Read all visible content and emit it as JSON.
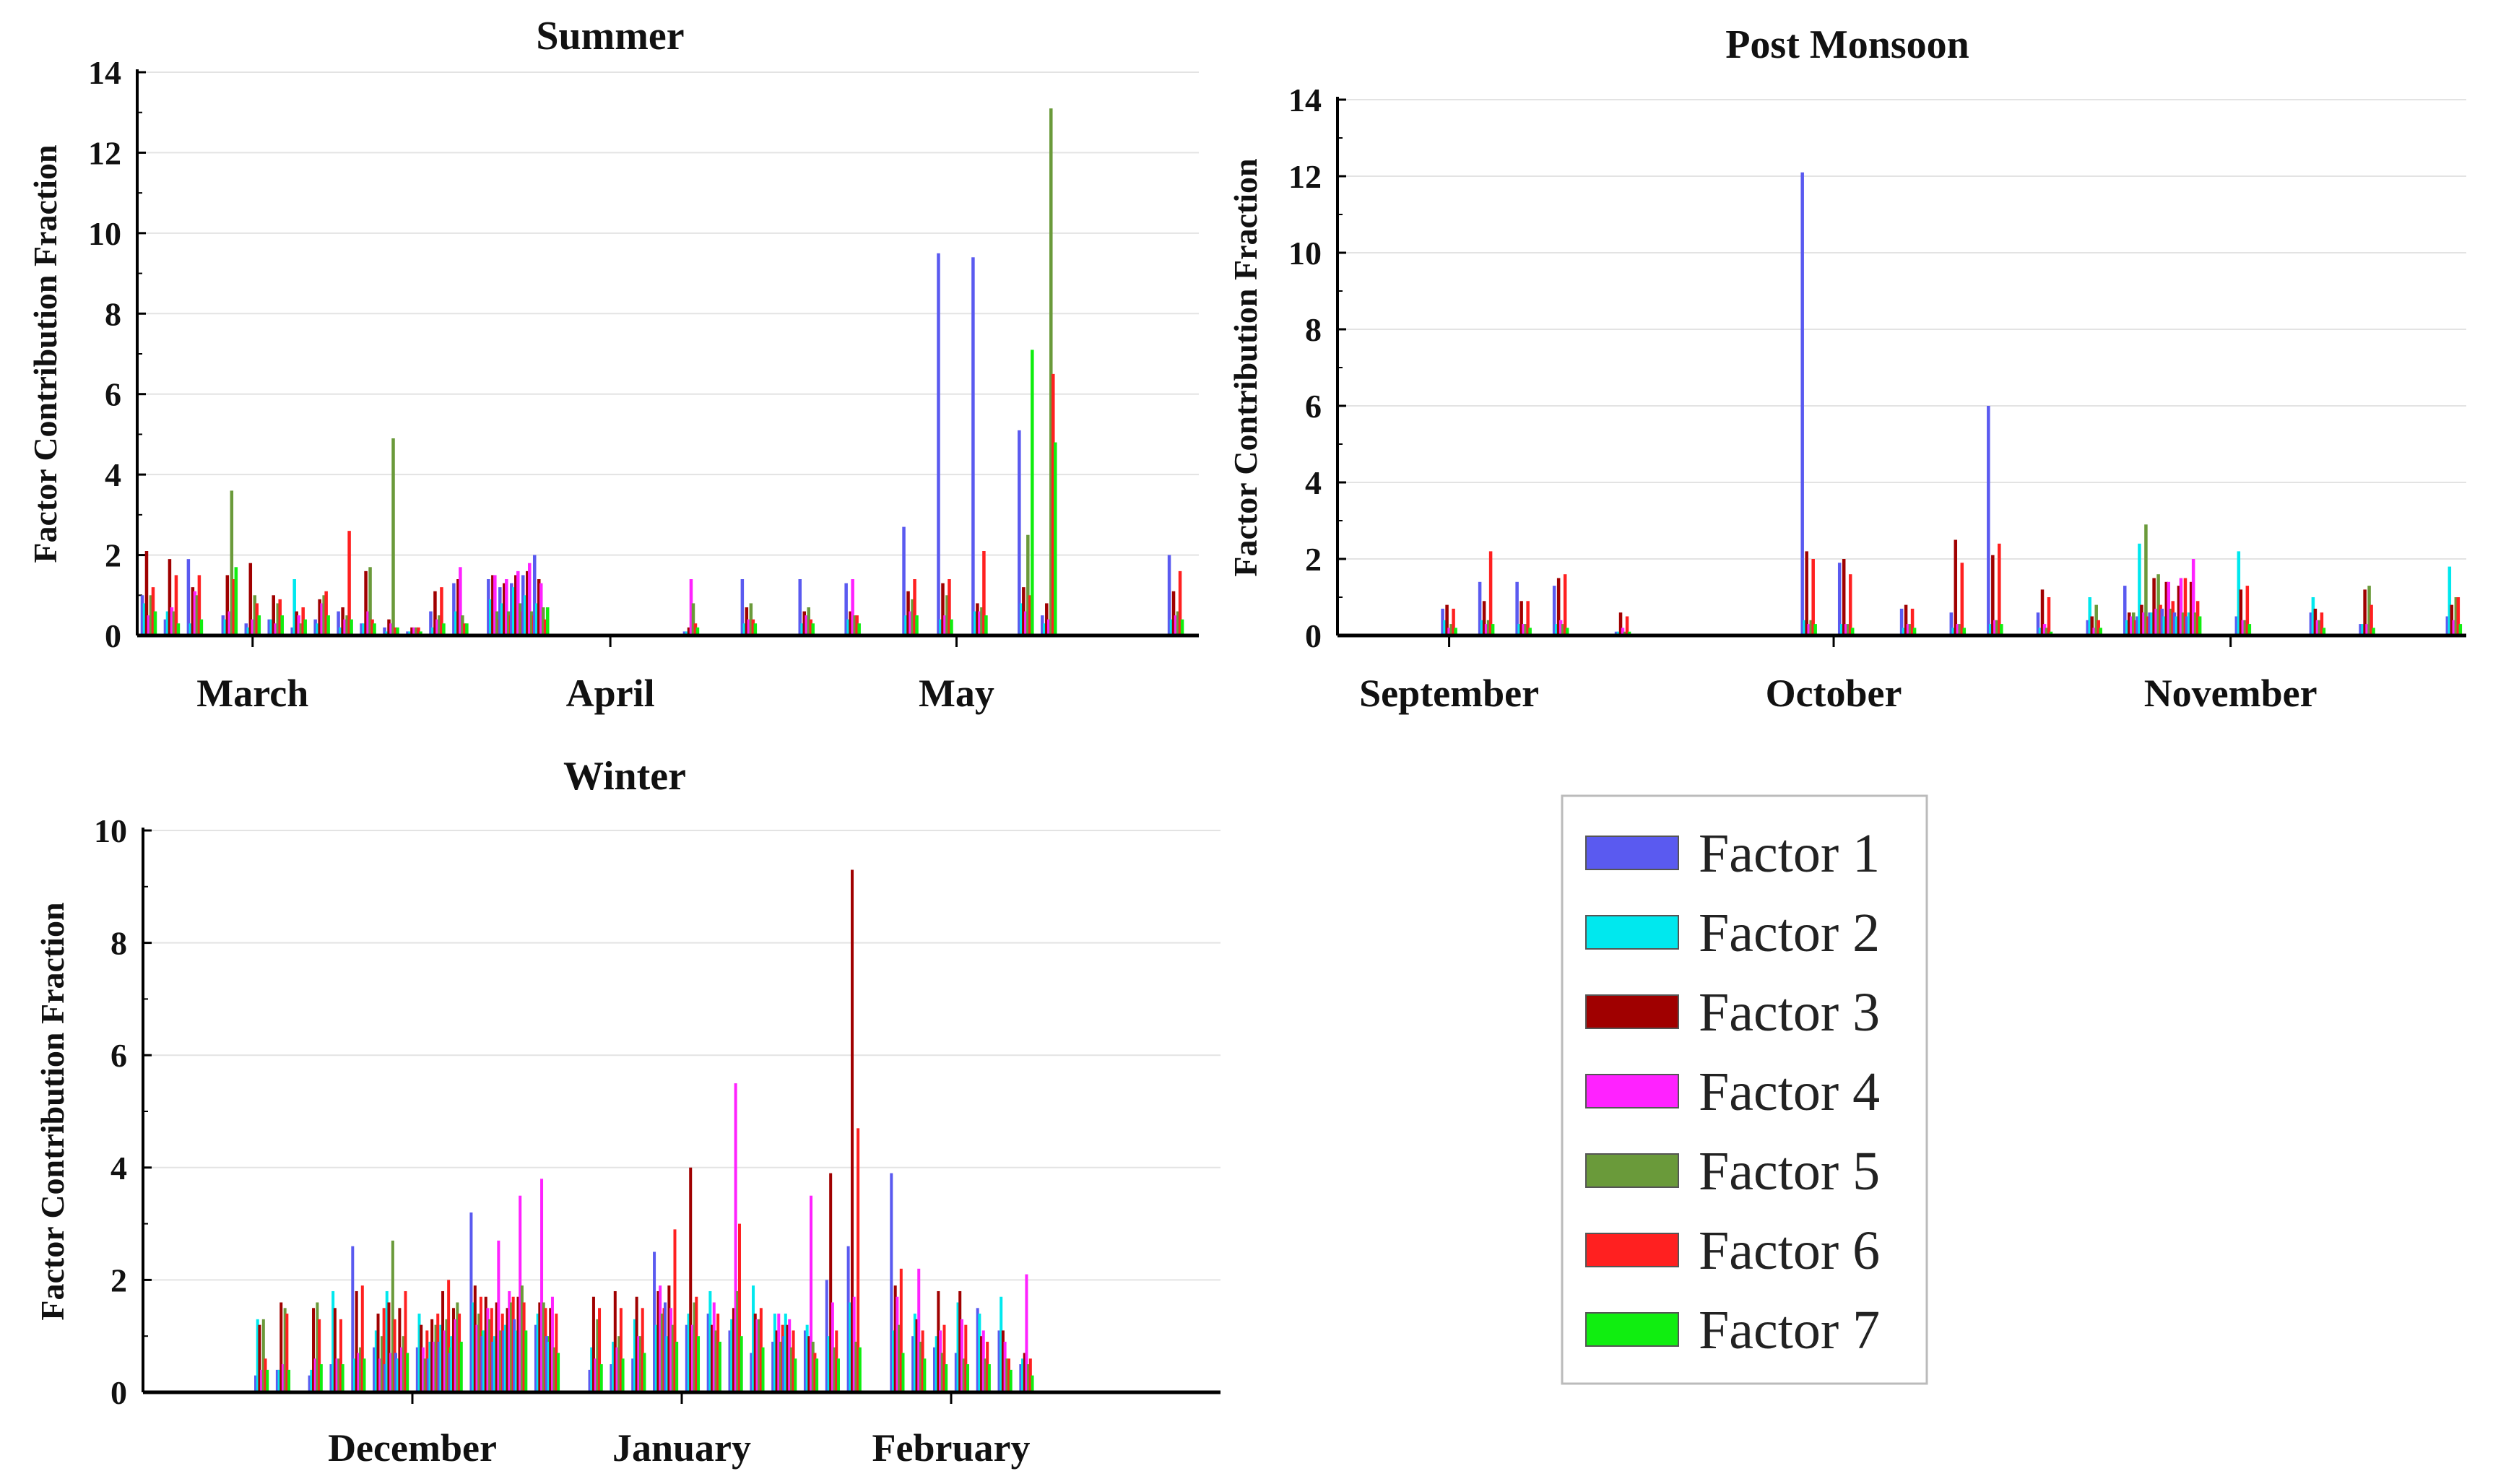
{
  "factors": [
    {
      "name": "Factor 1",
      "color": "#5a5af0"
    },
    {
      "name": "Factor 2",
      "color": "#00e8ee"
    },
    {
      "name": "Factor 3",
      "color": "#a00000"
    },
    {
      "name": "Factor 4",
      "color": "#ff22ff"
    },
    {
      "name": "Factor 5",
      "color": "#6a9a3a"
    },
    {
      "name": "Factor 6",
      "color": "#ff2020"
    },
    {
      "name": "Factor 7",
      "color": "#10ee10"
    }
  ],
  "chart_data": [
    {
      "type": "bar",
      "title": "Summer",
      "ylabel": "Factor Contribution Fraction",
      "xlabel": "",
      "ylim": [
        0,
        14
      ],
      "yticks": [
        0,
        2,
        4,
        6,
        8,
        10,
        12,
        14
      ],
      "xlim": [
        0,
        92
      ],
      "months": [
        {
          "label": "March",
          "x": 10
        },
        {
          "label": "April",
          "x": 41
        },
        {
          "label": "May",
          "x": 71
        }
      ],
      "samples": [
        {
          "day": 1,
          "values": [
            1.0,
            0.8,
            2.1,
            0.5,
            1.0,
            1.2,
            0.6
          ]
        },
        {
          "day": 3,
          "values": [
            0.4,
            0.6,
            1.9,
            0.7,
            0.6,
            1.5,
            0.3
          ]
        },
        {
          "day": 5,
          "values": [
            1.9,
            0.3,
            1.2,
            1.1,
            1.0,
            1.5,
            0.4
          ]
        },
        {
          "day": 8,
          "values": [
            0.5,
            0.4,
            1.5,
            0.6,
            3.6,
            1.4,
            1.7
          ]
        },
        {
          "day": 10,
          "values": [
            0.3,
            0.2,
            1.8,
            0.4,
            1.0,
            0.8,
            0.5
          ]
        },
        {
          "day": 12,
          "values": [
            0.4,
            0.4,
            1.0,
            0.3,
            0.8,
            0.9,
            0.5
          ]
        },
        {
          "day": 14,
          "values": [
            0.2,
            1.4,
            0.6,
            0.5,
            0.3,
            0.7,
            0.4
          ]
        },
        {
          "day": 16,
          "values": [
            0.4,
            0.3,
            0.9,
            0.8,
            1.0,
            1.1,
            0.5
          ]
        },
        {
          "day": 18,
          "values": [
            0.6,
            0.2,
            0.7,
            0.4,
            0.5,
            2.6,
            0.4
          ]
        },
        {
          "day": 20,
          "values": [
            0.3,
            0.3,
            1.6,
            0.6,
            1.7,
            0.4,
            0.3
          ]
        },
        {
          "day": 22,
          "values": [
            0.2,
            0.1,
            0.4,
            0.3,
            4.9,
            0.2,
            0.2
          ]
        },
        {
          "day": 24,
          "values": [
            0.1,
            0.1,
            0.2,
            0.2,
            0.2,
            0.2,
            0.1
          ]
        },
        {
          "day": 26,
          "values": [
            0.6,
            0.2,
            1.1,
            0.4,
            0.5,
            1.2,
            0.3
          ]
        },
        {
          "day": 28,
          "values": [
            1.3,
            0.6,
            1.4,
            1.7,
            0.5,
            0.3,
            0.3
          ]
        },
        {
          "day": 31,
          "values": [
            1.4,
            0.9,
            1.5,
            1.5,
            0.6,
            0.4,
            0.6
          ]
        },
        {
          "day": 32,
          "values": [
            1.2,
            0.8,
            1.3,
            1.4,
            0.6,
            0.5,
            0.6
          ]
        },
        {
          "day": 33,
          "values": [
            1.3,
            1.2,
            1.5,
            1.6,
            0.8,
            0.6,
            0.7
          ]
        },
        {
          "day": 34,
          "values": [
            1.5,
            1.0,
            1.6,
            1.8,
            0.6,
            0.5,
            0.5
          ]
        },
        {
          "day": 35,
          "values": [
            2.0,
            0.8,
            1.4,
            1.3,
            0.7,
            0.4,
            0.7
          ]
        },
        {
          "day": 48,
          "values": [
            0.1,
            0.1,
            0.2,
            1.4,
            0.8,
            0.3,
            0.2
          ]
        },
        {
          "day": 53,
          "values": [
            1.4,
            0.3,
            0.7,
            0.4,
            0.8,
            0.4,
            0.3
          ]
        },
        {
          "day": 58,
          "values": [
            1.4,
            0.3,
            0.6,
            0.5,
            0.7,
            0.4,
            0.3
          ]
        },
        {
          "day": 62,
          "values": [
            1.3,
            0.4,
            0.6,
            1.4,
            0.5,
            0.5,
            0.3
          ]
        },
        {
          "day": 67,
          "values": [
            2.7,
            0.5,
            1.1,
            0.6,
            0.9,
            1.4,
            0.5
          ]
        },
        {
          "day": 70,
          "values": [
            9.5,
            0.4,
            1.3,
            0.5,
            1.0,
            1.4,
            0.4
          ]
        },
        {
          "day": 73,
          "values": [
            9.4,
            0.6,
            0.8,
            0.6,
            0.7,
            2.1,
            0.5
          ]
        },
        {
          "day": 77,
          "values": [
            5.1,
            0.8,
            1.2,
            0.6,
            2.5,
            1.0,
            7.1
          ]
        },
        {
          "day": 79,
          "values": [
            0.5,
            0.3,
            0.8,
            0.4,
            13.1,
            6.5,
            4.8
          ]
        },
        {
          "day": 90,
          "values": [
            2.0,
            0.4,
            1.1,
            0.5,
            0.6,
            1.6,
            0.4
          ]
        }
      ]
    },
    {
      "type": "bar",
      "title": "Post Monsoon",
      "ylabel": "Factor Contribution Fraction",
      "xlabel": "",
      "ylim": [
        0,
        14
      ],
      "yticks": [
        0,
        2,
        4,
        6,
        8,
        10,
        12,
        14
      ],
      "xlim": [
        0,
        91
      ],
      "months": [
        {
          "label": "September",
          "x": 9
        },
        {
          "label": "October",
          "x": 40
        },
        {
          "label": "November",
          "x": 72
        }
      ],
      "samples": [
        {
          "day": 9,
          "values": [
            0.7,
            0.4,
            0.8,
            0.2,
            0.3,
            0.7,
            0.2
          ]
        },
        {
          "day": 12,
          "values": [
            1.4,
            0.4,
            0.9,
            0.3,
            0.4,
            2.2,
            0.3
          ]
        },
        {
          "day": 15,
          "values": [
            1.4,
            0.3,
            0.9,
            0.3,
            0.3,
            0.9,
            0.2
          ]
        },
        {
          "day": 18,
          "values": [
            1.3,
            0.3,
            1.5,
            0.4,
            0.3,
            1.6,
            0.2
          ]
        },
        {
          "day": 23,
          "values": [
            0.1,
            0.1,
            0.6,
            0.2,
            0.1,
            0.5,
            0.1
          ]
        },
        {
          "day": 38,
          "values": [
            12.1,
            0.4,
            2.2,
            0.3,
            0.4,
            2.0,
            0.3
          ]
        },
        {
          "day": 41,
          "values": [
            1.9,
            0.3,
            2.0,
            0.3,
            0.3,
            1.6,
            0.2
          ]
        },
        {
          "day": 46,
          "values": [
            0.7,
            0.2,
            0.8,
            0.3,
            0.3,
            0.7,
            0.2
          ]
        },
        {
          "day": 50,
          "values": [
            0.6,
            0.2,
            2.5,
            0.3,
            0.3,
            1.9,
            0.2
          ]
        },
        {
          "day": 53,
          "values": [
            6.0,
            0.3,
            2.1,
            0.4,
            0.4,
            2.4,
            0.3
          ]
        },
        {
          "day": 57,
          "values": [
            0.6,
            0.2,
            1.2,
            0.3,
            0.2,
            1.0,
            0.1
          ]
        },
        {
          "day": 61,
          "values": [
            0.4,
            1.0,
            0.5,
            0.2,
            0.8,
            0.4,
            0.2
          ]
        },
        {
          "day": 64,
          "values": [
            1.3,
            0.4,
            0.6,
            0.5,
            0.6,
            0.4,
            0.3
          ]
        },
        {
          "day": 65,
          "values": [
            0.5,
            2.4,
            0.8,
            0.6,
            2.9,
            0.5,
            0.5
          ]
        },
        {
          "day": 66,
          "values": [
            0.6,
            0.6,
            1.5,
            0.7,
            1.6,
            0.8,
            0.5
          ]
        },
        {
          "day": 67,
          "values": [
            0.7,
            0.5,
            1.4,
            1.4,
            0.7,
            0.9,
            0.4
          ]
        },
        {
          "day": 68,
          "values": [
            0.6,
            0.5,
            1.3,
            1.5,
            0.6,
            1.5,
            0.4
          ]
        },
        {
          "day": 69,
          "values": [
            0.5,
            0.6,
            1.4,
            2.0,
            0.6,
            0.9,
            0.5
          ]
        },
        {
          "day": 73,
          "values": [
            0.5,
            2.2,
            1.2,
            0.4,
            0.4,
            1.3,
            0.3
          ]
        },
        {
          "day": 79,
          "values": [
            0.6,
            1.0,
            0.7,
            0.4,
            0.4,
            0.6,
            0.2
          ]
        },
        {
          "day": 83,
          "values": [
            0.3,
            0.3,
            1.2,
            0.3,
            1.3,
            0.8,
            0.2
          ]
        },
        {
          "day": 90,
          "values": [
            0.5,
            1.8,
            0.8,
            0.4,
            1.0,
            1.0,
            0.3
          ]
        }
      ]
    },
    {
      "type": "bar",
      "title": "Winter",
      "ylabel": "Factor Contribution Fraction",
      "xlabel": "",
      "ylim": [
        0,
        10
      ],
      "yticks": [
        0,
        2,
        4,
        6,
        8,
        10
      ],
      "xlim": [
        0,
        100
      ],
      "months": [
        {
          "label": "December",
          "x": 25
        },
        {
          "label": "January",
          "x": 50
        },
        {
          "label": "February",
          "x": 75
        }
      ],
      "samples": [
        {
          "day": 11,
          "values": [
            0.3,
            1.3,
            1.2,
            0.4,
            1.3,
            0.6,
            0.4
          ]
        },
        {
          "day": 13,
          "values": [
            0.4,
            0.4,
            1.6,
            0.5,
            1.5,
            1.4,
            0.4
          ]
        },
        {
          "day": 16,
          "values": [
            0.3,
            0.4,
            1.5,
            0.6,
            1.6,
            1.3,
            0.5
          ]
        },
        {
          "day": 18,
          "values": [
            0.5,
            1.8,
            1.5,
            0.6,
            0.6,
            1.3,
            0.5
          ]
        },
        {
          "day": 20,
          "values": [
            2.6,
            0.6,
            1.8,
            0.7,
            0.8,
            1.9,
            0.6
          ]
        },
        {
          "day": 22,
          "values": [
            0.8,
            1.1,
            1.4,
            0.6,
            1.0,
            1.5,
            0.5
          ]
        },
        {
          "day": 23,
          "values": [
            0.5,
            1.8,
            1.6,
            0.7,
            2.7,
            1.3,
            0.6
          ]
        },
        {
          "day": 24,
          "values": [
            0.7,
            0.6,
            1.5,
            0.8,
            1.0,
            1.8,
            0.7
          ]
        },
        {
          "day": 26,
          "values": [
            0.8,
            1.4,
            1.2,
            0.8,
            0.6,
            1.1,
            0.6
          ]
        },
        {
          "day": 27,
          "values": [
            0.6,
            0.9,
            1.3,
            0.9,
            1.2,
            1.4,
            0.7
          ]
        },
        {
          "day": 28,
          "values": [
            0.9,
            1.2,
            1.8,
            1.1,
            1.3,
            2.0,
            0.8
          ]
        },
        {
          "day": 29,
          "values": [
            0.7,
            1.0,
            1.5,
            1.3,
            1.6,
            1.4,
            0.9
          ]
        },
        {
          "day": 31,
          "values": [
            3.2,
            1.6,
            1.9,
            1.2,
            1.4,
            1.7,
            1.1
          ]
        },
        {
          "day": 32,
          "values": [
            1.0,
            1.1,
            1.7,
            1.5,
            1.3,
            1.5,
            0.9
          ]
        },
        {
          "day": 33,
          "values": [
            0.9,
            1.0,
            1.6,
            2.7,
            1.1,
            1.4,
            0.8
          ]
        },
        {
          "day": 34,
          "values": [
            1.1,
            1.2,
            1.5,
            1.8,
            1.6,
            1.7,
            1.0
          ]
        },
        {
          "day": 35,
          "values": [
            1.3,
            1.1,
            1.7,
            3.5,
            1.9,
            1.6,
            1.1
          ]
        },
        {
          "day": 37,
          "values": [
            1.2,
            1.4,
            1.6,
            3.8,
            1.6,
            1.5,
            1.0
          ]
        },
        {
          "day": 38,
          "values": [
            1.0,
            0.9,
            1.5,
            1.7,
            0.8,
            1.4,
            0.7
          ]
        },
        {
          "day": 42,
          "values": [
            0.4,
            0.8,
            1.7,
            0.6,
            1.3,
            1.5,
            0.5
          ]
        },
        {
          "day": 44,
          "values": [
            0.5,
            0.9,
            1.8,
            0.8,
            1.0,
            1.5,
            0.6
          ]
        },
        {
          "day": 46,
          "values": [
            0.6,
            1.3,
            1.7,
            1.0,
            1.0,
            1.5,
            0.7
          ]
        },
        {
          "day": 48,
          "values": [
            2.5,
            1.2,
            1.8,
            1.9,
            1.4,
            1.5,
            0.8
          ]
        },
        {
          "day": 49,
          "values": [
            1.6,
            1.0,
            1.9,
            1.5,
            1.2,
            2.9,
            0.9
          ]
        },
        {
          "day": 51,
          "values": [
            1.2,
            1.4,
            4.0,
            1.2,
            1.6,
            1.7,
            1.0
          ]
        },
        {
          "day": 53,
          "values": [
            1.4,
            1.8,
            1.2,
            1.6,
            1.1,
            1.4,
            0.9
          ]
        },
        {
          "day": 55,
          "values": [
            1.1,
            1.3,
            1.5,
            5.5,
            1.8,
            3.0,
            1.0
          ]
        },
        {
          "day": 57,
          "values": [
            0.7,
            1.9,
            1.4,
            1.3,
            1.3,
            1.5,
            0.8
          ]
        },
        {
          "day": 59,
          "values": [
            0.9,
            1.4,
            1.1,
            1.4,
            0.9,
            1.2,
            0.7
          ]
        },
        {
          "day": 60,
          "values": [
            1.0,
            1.4,
            1.2,
            1.3,
            0.8,
            1.1,
            0.6
          ]
        },
        {
          "day": 62,
          "values": [
            1.1,
            1.2,
            1.0,
            3.5,
            0.9,
            0.7,
            0.6
          ]
        },
        {
          "day": 64,
          "values": [
            2.0,
            1.0,
            3.9,
            1.6,
            0.8,
            1.1,
            0.6
          ]
        },
        {
          "day": 66,
          "values": [
            2.6,
            1.6,
            9.3,
            1.7,
            0.9,
            4.7,
            0.8
          ]
        },
        {
          "day": 70,
          "values": [
            3.9,
            1.1,
            1.9,
            1.7,
            1.2,
            2.2,
            0.7
          ]
        },
        {
          "day": 72,
          "values": [
            1.0,
            1.4,
            1.3,
            2.2,
            0.9,
            1.1,
            0.6
          ]
        },
        {
          "day": 74,
          "values": [
            0.8,
            1.0,
            1.8,
            1.1,
            0.7,
            1.2,
            0.5
          ]
        },
        {
          "day": 76,
          "values": [
            0.7,
            1.6,
            1.8,
            1.3,
            0.6,
            1.2,
            0.5
          ]
        },
        {
          "day": 78,
          "values": [
            1.5,
            1.4,
            1.0,
            1.1,
            0.6,
            0.9,
            0.5
          ]
        },
        {
          "day": 80,
          "values": [
            1.1,
            1.7,
            1.1,
            0.9,
            0.6,
            0.6,
            0.4
          ]
        },
        {
          "day": 82,
          "values": [
            0.5,
            0.6,
            0.7,
            2.1,
            0.5,
            0.6,
            0.3
          ]
        }
      ]
    }
  ]
}
